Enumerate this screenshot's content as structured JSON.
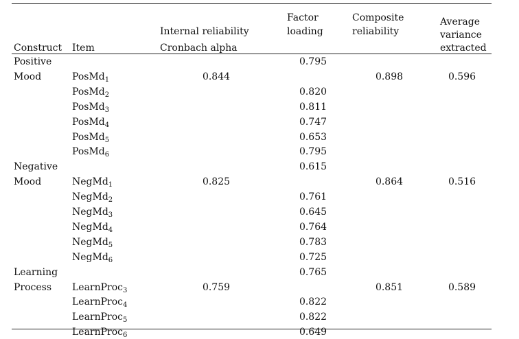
{
  "headers": {
    "construct": "Construct",
    "item": "Item",
    "internal_reliability": [
      "Internal reliability",
      "Cronbach alpha"
    ],
    "factor_loading": [
      "Factor",
      "loading"
    ],
    "composite_reliability": [
      "Composite",
      "reliability"
    ],
    "ave": [
      "Average",
      "variance",
      "extracted"
    ]
  },
  "groups": [
    {
      "construct": [
        "Positive",
        "Mood"
      ],
      "cronbach_alpha": "0.844",
      "composite_reliability": "0.898",
      "ave": "0.596",
      "first_loading": "0.795",
      "items": [
        {
          "base": "PosMd",
          "sub": "1",
          "loading": ""
        },
        {
          "base": "PosMd",
          "sub": "2",
          "loading": "0.820"
        },
        {
          "base": "PosMd",
          "sub": "3",
          "loading": "0.811"
        },
        {
          "base": "PosMd",
          "sub": "4",
          "loading": "0.747"
        },
        {
          "base": "PosMd",
          "sub": "5",
          "loading": "0.653"
        },
        {
          "base": "PosMd",
          "sub": "6",
          "loading": "0.795"
        }
      ]
    },
    {
      "construct": [
        "Negative",
        "Mood"
      ],
      "cronbach_alpha": "0.825",
      "composite_reliability": "0.864",
      "ave": "0.516",
      "first_loading": "0.615",
      "items": [
        {
          "base": "NegMd",
          "sub": "1",
          "loading": ""
        },
        {
          "base": "NegMd",
          "sub": "2",
          "loading": "0.761"
        },
        {
          "base": "NegMd",
          "sub": "3",
          "loading": "0.645"
        },
        {
          "base": "NegMd",
          "sub": "4",
          "loading": "0.764"
        },
        {
          "base": "NegMd",
          "sub": "5",
          "loading": "0.783"
        },
        {
          "base": "NegMd",
          "sub": "6",
          "loading": "0.725"
        }
      ]
    },
    {
      "construct": [
        "Learning",
        "Process"
      ],
      "cronbach_alpha": "0.759",
      "composite_reliability": "0.851",
      "ave": "0.589",
      "first_loading": "0.765",
      "items": [
        {
          "base": "LearnProc",
          "sub": "3",
          "loading": ""
        },
        {
          "base": "LearnProc",
          "sub": "4",
          "loading": "0.822"
        },
        {
          "base": "LearnProc",
          "sub": "5",
          "loading": "0.822"
        },
        {
          "base": "LearnProc",
          "sub": "6",
          "loading": "0.649"
        }
      ]
    }
  ]
}
